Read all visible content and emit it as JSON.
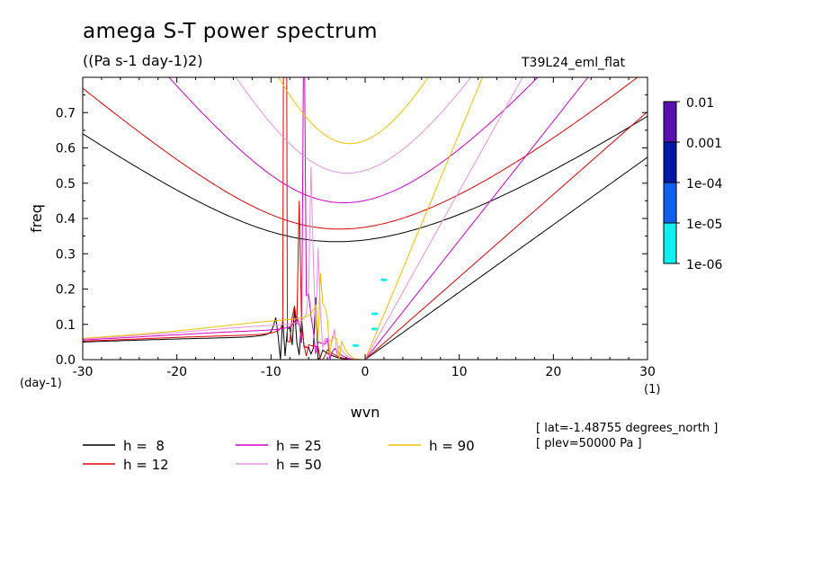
{
  "title": "amega S-T power spectrum",
  "units": "((Pa s-1 day-1)2)",
  "experiment": "T39L24_eml_flat",
  "info_lat": "[ lat=-1.48755 degrees_north ]",
  "info_plev": "[ plev=50000 Pa ]",
  "chart_data": {
    "type": "line",
    "xlabel": "wvn",
    "ylabel": "freq",
    "x_unit_label": "(1)",
    "y_unit_label": "(day-1)",
    "xlim": [
      -30,
      30
    ],
    "ylim": [
      0,
      0.8
    ],
    "x_ticks": [
      -30,
      -20,
      -10,
      0,
      10,
      20,
      30
    ],
    "x_tick_labels": [
      "-30",
      "-20",
      "-10",
      "0",
      "10",
      "20",
      "30"
    ],
    "y_ticks": [
      0,
      0.1,
      0.2,
      0.3,
      0.4,
      0.5,
      0.6,
      0.7
    ],
    "y_tick_labels": [
      "0.0",
      "0.1",
      "0.2",
      "0.3",
      "0.4",
      "0.5",
      "0.6",
      "0.7"
    ],
    "series": [
      {
        "name": "h =  8",
        "h": 8,
        "color": "#000000"
      },
      {
        "name": "h = 12",
        "h": 12,
        "color": "#e00000"
      },
      {
        "name": "h = 25",
        "h": 25,
        "color": "#d000c8"
      },
      {
        "name": "h = 50",
        "h": 50,
        "color": "#e890e0"
      },
      {
        "name": "h = 90",
        "h": 90,
        "color": "#f0c000"
      }
    ],
    "colorbar": {
      "labels": [
        "0.01",
        "0.001",
        "1e-04",
        "1e-05",
        "1e-06"
      ],
      "colors": [
        "#5a10b0",
        "#0018a8",
        "#1060f0",
        "#10f0f0"
      ]
    },
    "contour_patches": [
      {
        "x": 2.0,
        "y": 0.226
      },
      {
        "x": 1.0,
        "y": 0.13
      },
      {
        "x": 1.0,
        "y": 0.087
      },
      {
        "x": -1.0,
        "y": 0.04
      }
    ]
  }
}
